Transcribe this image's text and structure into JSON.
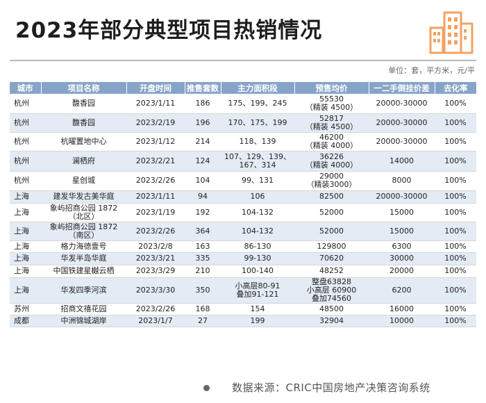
{
  "title": "2023年部分典型项目热销情况",
  "unit_note": "单位：套，平方米，元/平",
  "table": {
    "headers": [
      "城市",
      "项目名称",
      "开盘时间",
      "推售套数",
      "主力面积段",
      "预售均价",
      "一二手倒挂价差",
      "去化率"
    ],
    "rows": [
      [
        "杭州",
        "馥香园",
        "2023/1/11",
        "186",
        "175、199、245",
        "55530\n（精装 4500）",
        "20000-30000",
        "100%"
      ],
      [
        "杭州",
        "馥香园",
        "2023/2/19",
        "196",
        "170、175、199",
        "52817\n（精装 4500）",
        "20000-30000",
        "100%"
      ],
      [
        "杭州",
        "杭曜置地中心",
        "2023/1/12",
        "214",
        "118、139",
        "46200\n（精装 4000）",
        "20000-30000",
        "100%"
      ],
      [
        "杭州",
        "澜栖府",
        "2023/2/21",
        "124",
        "107、129、139、\n167、314",
        "36226\n（精装 4000）",
        "14000",
        "100%"
      ],
      [
        "杭州",
        "星创城",
        "2023/2/26",
        "104",
        "99、131",
        "29000\n（精装3000）",
        "8000",
        "100%"
      ],
      [
        "上海",
        "建发华发古美华庭",
        "2023/1/11",
        "94",
        "106",
        "82500",
        "20000-30000",
        "100%"
      ],
      [
        "上海",
        "象屿招商公园 1872\n（北区）",
        "2023/1/19",
        "192",
        "104-132",
        "52000",
        "15000",
        "100%"
      ],
      [
        "上海",
        "象屿招商公园 1872\n（南区）",
        "2023/2/26",
        "364",
        "104-132",
        "52000",
        "15000",
        "100%"
      ],
      [
        "上海",
        "格力海德壹号",
        "2023/2/8",
        "163",
        "86-130",
        "129800",
        "6300",
        "100%"
      ],
      [
        "上海",
        "华发半岛华庭",
        "2023/3/21",
        "335",
        "99-130",
        "70620",
        "30000",
        "100%"
      ],
      [
        "上海",
        "中国铁建星樾云栖",
        "2023/3/29",
        "210",
        "100-140",
        "48252",
        "20000",
        "100%"
      ],
      [
        "上海",
        "华发四季河滨",
        "2023/3/30",
        "350",
        "小高层80-91\n叠加91-121",
        "整盘63828\n小高层 60900\n叠加74560",
        "6200",
        "100%"
      ],
      [
        "苏州",
        "招商文禧花园",
        "2023/2/26",
        "168",
        "154",
        "48500",
        "16000",
        "100%"
      ],
      [
        "成都",
        "中洲锦城湖岸",
        "2023/1/7",
        "27",
        "199",
        "32904",
        "10000",
        "100%"
      ]
    ],
    "row_heights": [
      0,
      0,
      0,
      0,
      0,
      0,
      0,
      0,
      0,
      0,
      0,
      0,
      0,
      0
    ]
  },
  "source": "数据来源：CRIC中国房地产决策咨询系统",
  "colors": {
    "header_bg": "#87a4c8",
    "alt_row_bg": "#e3ebf5",
    "building_icon": "#f4a261"
  },
  "icons": {
    "logo": "building-icon",
    "footer": "dot-icon"
  }
}
